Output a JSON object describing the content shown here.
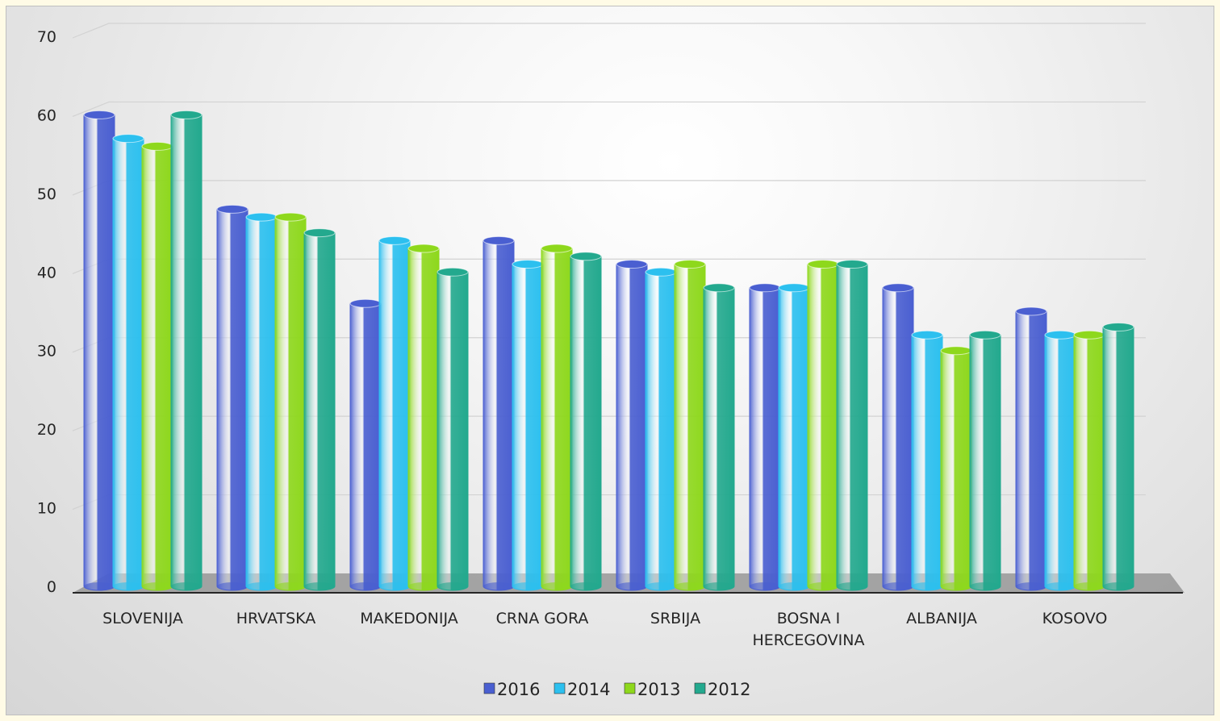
{
  "chart_data": {
    "type": "bar",
    "categories": [
      "SLOVENIJA",
      "HRVATSKA",
      "MAKEDONIJA",
      "CRNA GORA",
      "SRBIJA",
      "BOSNA I HERCEGOVINA",
      "ALBANIJA",
      "KOSOVO"
    ],
    "category_lines": [
      [
        "SLOVENIJA"
      ],
      [
        "HRVATSKA"
      ],
      [
        "MAKEDONIJA"
      ],
      [
        "CRNA GORA"
      ],
      [
        "SRBIJA"
      ],
      [
        "BOSNA I",
        "HERCEGOVINA"
      ],
      [
        "ALBANIJA"
      ],
      [
        "KOSOVO"
      ]
    ],
    "series": [
      {
        "name": "2016",
        "color": "#4a5fd1",
        "values": [
          60,
          48,
          36,
          44,
          41,
          38,
          38,
          35
        ]
      },
      {
        "name": "2014",
        "color": "#2cc0ef",
        "values": [
          57,
          47,
          44,
          41,
          40,
          38,
          32,
          32
        ]
      },
      {
        "name": "2013",
        "color": "#8ed81c",
        "values": [
          56,
          47,
          43,
          43,
          41,
          41,
          30,
          32
        ]
      },
      {
        "name": "2012",
        "color": "#23a98e",
        "values": [
          60,
          45,
          40,
          42,
          38,
          41,
          32,
          33
        ]
      }
    ],
    "title": "",
    "xlabel": "",
    "ylabel": "",
    "ylim": [
      0,
      70
    ],
    "yticks": [
      "0",
      "10",
      "20",
      "30",
      "40",
      "50",
      "60",
      "70"
    ],
    "grid": true,
    "legend_position": "bottom",
    "style": "3d-cylinder"
  }
}
